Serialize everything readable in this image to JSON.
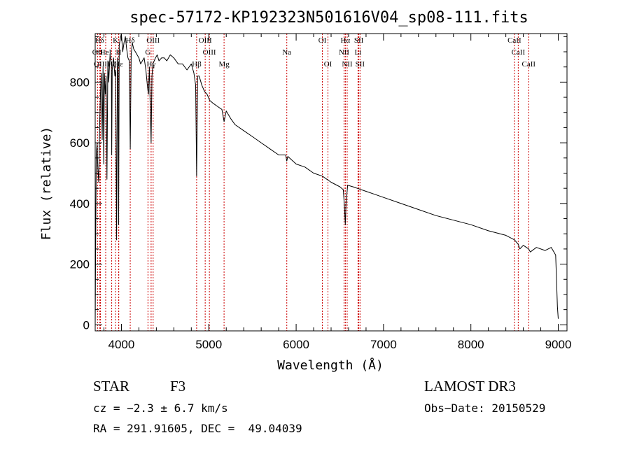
{
  "chart_data": {
    "type": "line",
    "title": "spec-57172-KP192323N501616V04_sp08-111.fits",
    "xlabel": "Wavelength (Å)",
    "ylabel": "Flux (relative)",
    "xlim": [
      3700,
      9100
    ],
    "ylim": [
      -20,
      960
    ],
    "xticks": [
      4000,
      5000,
      6000,
      7000,
      8000,
      9000
    ],
    "xtick_labels": [
      "4000",
      "5000",
      "6000",
      "7000",
      "8000",
      "9000"
    ],
    "yticks": [
      0,
      200,
      400,
      600,
      800
    ],
    "ytick_labels": [
      "0",
      "200",
      "400",
      "600",
      "800"
    ],
    "series": [
      {
        "name": "flux",
        "x": [
          3700,
          3705,
          3712,
          3722,
          3730,
          3740,
          3748,
          3760,
          3770,
          3780,
          3790,
          3798,
          3806,
          3815,
          3825,
          3835,
          3845,
          3855,
          3870,
          3885,
          3889,
          3895,
          3910,
          3925,
          3935,
          3945,
          3955,
          3962,
          3968,
          3975,
          3985,
          4000,
          4015,
          4030,
          4045,
          4060,
          4075,
          4090,
          4101,
          4112,
          4125,
          4140,
          4160,
          4180,
          4200,
          4220,
          4240,
          4260,
          4280,
          4300,
          4310,
          4320,
          4330,
          4340,
          4350,
          4360,
          4375,
          4390,
          4410,
          4430,
          4460,
          4490,
          4520,
          4560,
          4600,
          4650,
          4700,
          4750,
          4800,
          4830,
          4850,
          4861,
          4872,
          4890,
          4920,
          4950,
          4980,
          5010,
          5050,
          5100,
          5150,
          5175,
          5200,
          5250,
          5300,
          5400,
          5500,
          5600,
          5700,
          5800,
          5880,
          5893,
          5905,
          6000,
          6100,
          6200,
          6300,
          6400,
          6500,
          6540,
          6555,
          6563,
          6571,
          6590,
          6650,
          6700,
          6800,
          6900,
          7000,
          7200,
          7400,
          7600,
          7800,
          8000,
          8200,
          8400,
          8500,
          8542,
          8560,
          8600,
          8662,
          8680,
          8750,
          8850,
          8920,
          8950,
          8970,
          8980,
          8990,
          9000
        ],
        "values": [
          0,
          240,
          560,
          600,
          520,
          470,
          620,
          760,
          830,
          610,
          850,
          530,
          830,
          760,
          820,
          480,
          870,
          800,
          890,
          860,
          560,
          840,
          880,
          820,
          840,
          280,
          880,
          830,
          330,
          920,
          940,
          960,
          900,
          930,
          950,
          910,
          880,
          870,
          580,
          890,
          930,
          910,
          900,
          890,
          880,
          860,
          870,
          880,
          840,
          780,
          760,
          850,
          720,
          600,
          820,
          860,
          870,
          880,
          890,
          870,
          880,
          880,
          870,
          890,
          880,
          860,
          860,
          840,
          860,
          830,
          790,
          490,
          820,
          820,
          790,
          770,
          760,
          740,
          730,
          720,
          710,
          670,
          705,
          680,
          660,
          640,
          620,
          600,
          580,
          560,
          560,
          540,
          555,
          530,
          520,
          500,
          490,
          470,
          455,
          445,
          380,
          330,
          400,
          460,
          455,
          450,
          440,
          430,
          420,
          400,
          380,
          360,
          345,
          330,
          310,
          295,
          280,
          265,
          250,
          262,
          250,
          240,
          255,
          245,
          255,
          240,
          230,
          150,
          60,
          20
        ]
      }
    ],
    "line_markers": [
      {
        "name": "Hd",
        "label": "Hδ",
        "wavelength": 3750,
        "row": 1
      },
      {
        "name": "OII",
        "label": "OII",
        "wavelength": 3727,
        "row": 2
      },
      {
        "name": "HeI",
        "label": "HeI",
        "wavelength": 3820,
        "row": 2
      },
      {
        "name": "OIII-a",
        "label": "OIII",
        "wavelength": 3760,
        "row": 3
      },
      {
        "name": "Hz",
        "label": "Hζ",
        "wavelength": 3889,
        "row": 3
      },
      {
        "name": "K",
        "label": "K",
        "wavelength": 3933,
        "row": 1
      },
      {
        "name": "H",
        "label": "H",
        "wavelength": 3968,
        "row": 2
      },
      {
        "name": "He",
        "label": "Hε",
        "wavelength": 3970,
        "row": 3
      },
      {
        "name": "Hd2",
        "label": "Hδ",
        "wavelength": 4101,
        "row": 1
      },
      {
        "name": "G",
        "label": "G",
        "wavelength": 4304,
        "row": 2
      },
      {
        "name": "Hg",
        "label": "Hγ",
        "wavelength": 4340,
        "row": 3
      },
      {
        "name": "OIII-b",
        "label": "OIII",
        "wavelength": 4363,
        "row": 1
      },
      {
        "name": "Hb",
        "label": "Hβ",
        "wavelength": 4861,
        "row": 3
      },
      {
        "name": "OIII-c",
        "label": "OIII",
        "wavelength": 4959,
        "row": 1
      },
      {
        "name": "OIII-d",
        "label": "OIII",
        "wavelength": 5007,
        "row": 2
      },
      {
        "name": "Mg",
        "label": "Mg",
        "wavelength": 5175,
        "row": 3
      },
      {
        "name": "Na",
        "label": "Na",
        "wavelength": 5893,
        "row": 2
      },
      {
        "name": "OI-a",
        "label": "OI",
        "wavelength": 6300,
        "row": 1
      },
      {
        "name": "OI-b",
        "label": "OI",
        "wavelength": 6364,
        "row": 3
      },
      {
        "name": "Ha",
        "label": "Hα",
        "wavelength": 6563,
        "row": 1
      },
      {
        "name": "NII-a",
        "label": "NII",
        "wavelength": 6548,
        "row": 2
      },
      {
        "name": "NII-b",
        "label": "NII",
        "wavelength": 6584,
        "row": 3
      },
      {
        "name": "SII-a",
        "label": "SII",
        "wavelength": 6717,
        "row": 1
      },
      {
        "name": "Li",
        "label": "Li",
        "wavelength": 6708,
        "row": 2
      },
      {
        "name": "SII-b",
        "label": "SII",
        "wavelength": 6731,
        "row": 3
      },
      {
        "name": "CaII-a",
        "label": "CaII",
        "wavelength": 8498,
        "row": 1
      },
      {
        "name": "CaII-b",
        "label": "CaII",
        "wavelength": 8542,
        "row": 2
      },
      {
        "name": "CaII-c",
        "label": "CaII",
        "wavelength": 8662,
        "row": 3
      }
    ],
    "colors": {
      "spectrum": "#000000",
      "markers": "#cc0000",
      "axes": "#000000"
    }
  },
  "info": {
    "object_class": "STAR",
    "subclass": "F3",
    "cz": "cz = −2.3 ± 6.7 km/s",
    "coords": "RA = 291.91605, DEC =  49.04039",
    "survey": "LAMOST DR3",
    "obs_date": "Obs−Date: 20150529"
  }
}
